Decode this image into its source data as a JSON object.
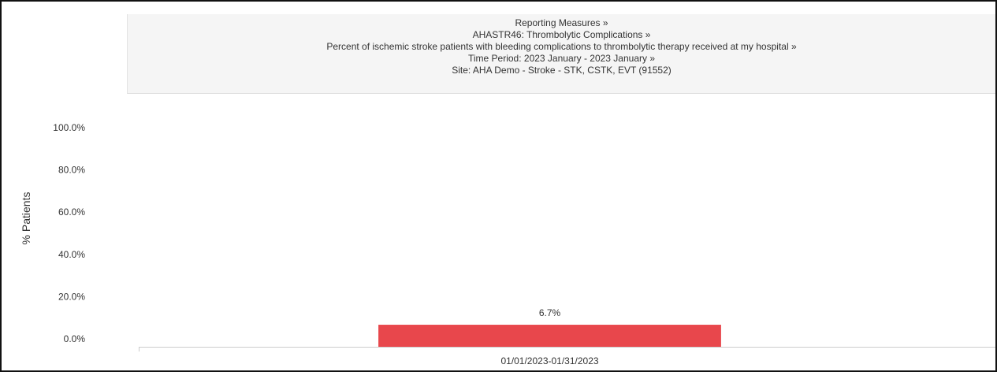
{
  "header": {
    "lines": [
      "Reporting Measures »",
      "AHASTR46: Thrombolytic Complications »",
      "Percent of ischemic stroke patients with bleeding complications to thrombolytic therapy received at my hospital »",
      "Time Period: 2023 January - 2023 January »",
      "Site: AHA Demo - Stroke - STK, CSTK, EVT (91552)"
    ]
  },
  "chart_data": {
    "type": "bar",
    "categories": [
      "01/01/2023-01/31/2023"
    ],
    "values": [
      6.7
    ],
    "data_labels": [
      "6.7%"
    ],
    "ylabel": "% Patients",
    "xlabel": "",
    "ylim": [
      0,
      100
    ],
    "yticks": [
      0,
      20,
      40,
      60,
      80,
      100
    ],
    "ytick_labels": [
      "0.0%",
      "20.0%",
      "40.0%",
      "60.0%",
      "80.0%",
      "100.0%"
    ],
    "grid": false,
    "colors": {
      "bar": "#e8474c",
      "axis": "#cccccc",
      "text": "#333333"
    }
  }
}
